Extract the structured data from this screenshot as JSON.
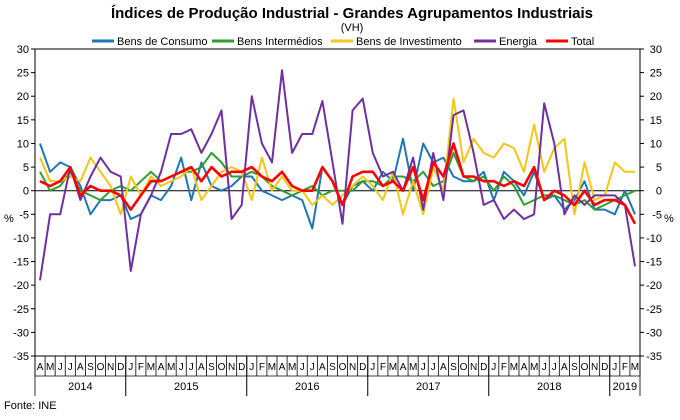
{
  "chart_data": {
    "type": "line",
    "title": "Índices de Produção Industrial - Grandes Agrupamentos Industriais",
    "subtitle": "(VH)",
    "ylabel_left": "%",
    "ylabel_right": "%",
    "source": "Fonte: INE",
    "ylim": [
      -35,
      30
    ],
    "yticks": [
      -35,
      -30,
      -25,
      -20,
      -15,
      -10,
      -5,
      0,
      5,
      10,
      15,
      20,
      25,
      30
    ],
    "grid": false,
    "legend_position": "top",
    "x": [
      "A",
      "M",
      "J",
      "J",
      "A",
      "S",
      "O",
      "N",
      "D",
      "J",
      "F",
      "M",
      "A",
      "M",
      "J",
      "J",
      "A",
      "S",
      "O",
      "N",
      "D",
      "J",
      "F",
      "M",
      "A",
      "M",
      "J",
      "J",
      "A",
      "S",
      "O",
      "N",
      "D",
      "J",
      "F",
      "M",
      "A",
      "M",
      "J",
      "J",
      "A",
      "S",
      "O",
      "N",
      "D",
      "J",
      "F",
      "M",
      "A",
      "M",
      "J",
      "J",
      "A",
      "S",
      "O",
      "N",
      "D",
      "J",
      "F",
      "M"
    ],
    "years": [
      {
        "label": "2014",
        "start": 0,
        "end": 8
      },
      {
        "label": "2015",
        "start": 9,
        "end": 20
      },
      {
        "label": "2016",
        "start": 21,
        "end": 32
      },
      {
        "label": "2017",
        "start": 33,
        "end": 44
      },
      {
        "label": "2018",
        "start": 45,
        "end": 56
      },
      {
        "label": "2019",
        "start": 57,
        "end": 59
      }
    ],
    "series": [
      {
        "name": "Bens de Consumo",
        "color": "#1f77b4",
        "values": [
          10,
          4,
          6,
          5,
          1,
          -5,
          -2,
          -2,
          -1,
          -6,
          -5,
          -1,
          -2,
          1,
          7,
          -2,
          6,
          1,
          0,
          1,
          3,
          3,
          0,
          -1,
          -2,
          -1,
          -2,
          -8,
          5,
          2,
          -3,
          1,
          2,
          0,
          4,
          2,
          11,
          0,
          10,
          6,
          7,
          3,
          2,
          2,
          4,
          -2,
          4,
          2,
          -1,
          4,
          -2,
          -1,
          -4,
          -2,
          2,
          -4,
          -4,
          -5,
          0,
          -5
        ]
      },
      {
        "name": "Bens Intermédios",
        "color": "#2ca02c",
        "values": [
          4,
          0,
          1,
          4,
          0,
          -1,
          -2,
          0,
          1,
          0,
          2,
          4,
          2,
          3,
          4,
          4,
          5,
          8,
          6,
          3,
          3,
          4,
          3,
          1,
          0,
          -1,
          0,
          1,
          -1,
          0,
          0,
          0,
          2,
          2,
          1,
          3,
          3,
          2,
          4,
          1,
          2,
          8,
          3,
          2,
          3,
          0,
          3,
          1,
          -3,
          -2,
          -1,
          -1,
          -2,
          -3,
          -2,
          -4,
          -3,
          -2,
          -1,
          0
        ]
      },
      {
        "name": "Bens de Investimento",
        "color": "#f5c518",
        "values": [
          7,
          2,
          2,
          3,
          2,
          7,
          4,
          1,
          -5,
          3,
          -1,
          3,
          1,
          2,
          3,
          5,
          -2,
          1,
          4,
          5,
          4,
          -2,
          7,
          0,
          3,
          0,
          0,
          -3,
          -1,
          -3,
          -1,
          1,
          3,
          1,
          -2,
          4,
          -5,
          2,
          -5,
          5,
          0,
          19.5,
          6,
          11,
          8,
          7,
          10,
          9,
          4,
          14,
          4,
          9,
          11,
          -5,
          6,
          -2,
          -1,
          6,
          4,
          4
        ]
      },
      {
        "name": "Energia",
        "color": "#7030a0",
        "values": [
          -19,
          -5,
          -5,
          5,
          -2,
          3,
          7,
          4,
          3,
          -17,
          -5,
          -1,
          4,
          12,
          12,
          13,
          8,
          12,
          17,
          -6,
          -3,
          20,
          10,
          6,
          25.5,
          8,
          12,
          12,
          19,
          6,
          -7,
          17,
          19.5,
          8,
          3,
          4,
          0,
          7,
          -4,
          8,
          -2,
          16,
          17,
          8,
          -3,
          -2,
          -6,
          -4,
          -6,
          -5,
          18.5,
          10,
          -5,
          -1,
          -3,
          -1,
          -1,
          -1,
          -3,
          -16
        ]
      },
      {
        "name": "Total",
        "color": "#ff0000",
        "values": [
          2,
          1,
          2,
          5,
          -1,
          1,
          0,
          0,
          -1,
          -4,
          -1,
          2,
          2,
          3,
          4,
          5,
          2,
          5,
          3,
          4,
          4,
          5,
          3,
          2,
          4,
          1,
          0,
          0,
          5,
          2,
          -3,
          3,
          4,
          4,
          1,
          2,
          0,
          5,
          -2,
          6,
          3,
          10,
          3,
          3,
          2,
          2,
          1,
          2,
          1,
          5,
          -2,
          0,
          -1,
          -3,
          0,
          -3,
          -2,
          -2,
          -3,
          -7
        ]
      }
    ]
  }
}
